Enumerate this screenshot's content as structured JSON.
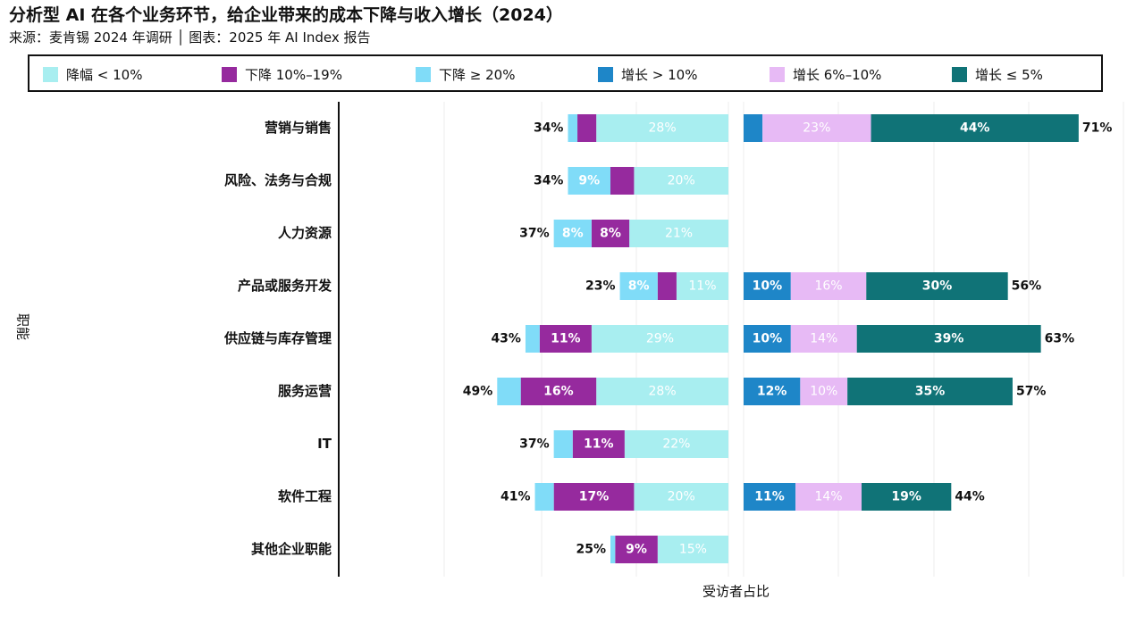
{
  "title": "分析型 AI 在各个业务环节，给企业带来的成本下降与收入增长（2024）",
  "subtitle": "来源：麦肯锡 2024 年调研 │ 图表：2025 年 AI Index 报告",
  "chart_data": {
    "type": "bar",
    "orientation": "horizontal-diverging",
    "xlabel": "受访者占比",
    "ylabel": "职能",
    "grid": true,
    "legend_position": "top",
    "categories": [
      "营销与销售",
      "风险、法务与合规",
      "人力资源",
      "产品或服务开发",
      "供应链与库存管理",
      "服务运营",
      "IT",
      "软件工程",
      "其他企业职能"
    ],
    "cost_series": [
      {
        "name": "降幅 < 10%",
        "color": "#A8EEF0",
        "values": [
          28,
          20,
          21,
          11,
          29,
          28,
          22,
          20,
          15
        ],
        "labels": [
          "28%",
          "20%",
          "21%",
          "11%",
          "29%",
          "28%",
          "22%",
          "20%",
          "15%"
        ]
      },
      {
        "name": "下降 10%–19%",
        "color": "#962A9E",
        "values": [
          4,
          5,
          8,
          4,
          11,
          16,
          11,
          17,
          9
        ],
        "labels": [
          "",
          "",
          "8%",
          "",
          "11%",
          "16%",
          "11%",
          "17%",
          "9%"
        ]
      },
      {
        "name": "下降 ≥ 20%",
        "color": "#80DCF8",
        "values": [
          2,
          9,
          8,
          8,
          3,
          5,
          4,
          4,
          1
        ],
        "labels": [
          "",
          "9%",
          "8%",
          "8%",
          "",
          "",
          "",
          "",
          ""
        ]
      }
    ],
    "cost_totals": [
      "34%",
      "34%",
      "37%",
      "23%",
      "43%",
      "49%",
      "37%",
      "41%",
      "25%"
    ],
    "revenue_series": [
      {
        "name": "增长 > 10%",
        "color": "#1E86C8",
        "values": [
          4,
          0,
          0,
          10,
          10,
          12,
          0,
          11,
          0
        ],
        "labels": [
          "",
          "",
          "",
          "10%",
          "10%",
          "12%",
          "",
          "11%",
          ""
        ]
      },
      {
        "name": "增长 6%–10%",
        "color": "#E7BAF5",
        "values": [
          23,
          0,
          0,
          16,
          14,
          10,
          0,
          14,
          0
        ],
        "labels": [
          "23%",
          "",
          "",
          "16%",
          "14%",
          "10%",
          "",
          "14%",
          ""
        ]
      },
      {
        "name": "增长 ≤ 5%",
        "color": "#107377",
        "values": [
          44,
          0,
          0,
          30,
          39,
          35,
          0,
          19,
          0
        ],
        "labels": [
          "44%",
          "",
          "",
          "30%",
          "39%",
          "35%",
          "",
          "19%",
          ""
        ]
      }
    ],
    "revenue_totals": [
      "71%",
      "",
      "",
      "56%",
      "63%",
      "57%",
      "",
      "44%",
      ""
    ]
  }
}
